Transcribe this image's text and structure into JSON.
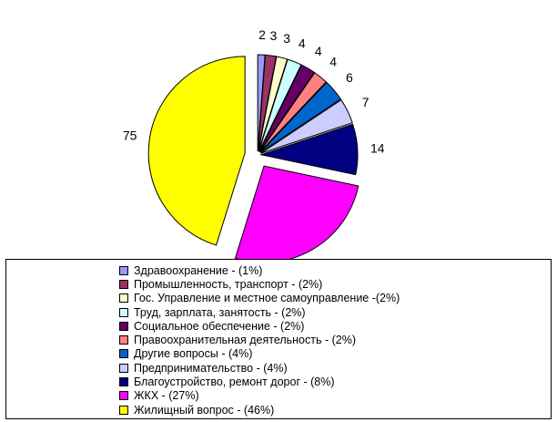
{
  "chart_data": {
    "type": "pie",
    "title": "",
    "slices": [
      {
        "label": "Здравоохранение - (1%)",
        "value": 2,
        "color": "#9999FF"
      },
      {
        "label": "Промышленность, транспорт - (2%)",
        "value": 3,
        "color": "#993366"
      },
      {
        "label": "Гос. Управление и местное самоуправление -(2%)",
        "value": 3,
        "color": "#FFFFCC"
      },
      {
        "label": "Труд, зарплата, занятость - (2%)",
        "value": 4,
        "color": "#CCFFFF"
      },
      {
        "label": "Социальное обеспечение - (2%)",
        "value": 4,
        "color": "#660066"
      },
      {
        "label": "Правоохранительная деятельность - (2%)",
        "value": 4,
        "color": "#FF8080"
      },
      {
        "label": "Другие вопросы - (4%)",
        "value": 6,
        "color": "#0066CC"
      },
      {
        "label": "Предпринимательство - (4%)",
        "value": 7,
        "color": "#CCCCFF"
      },
      {
        "label": "Благоустройство, ремонт дорог - (8%)",
        "value": 14,
        "color": "#000080"
      },
      {
        "label": "ЖКХ - (27%)",
        "value": 44,
        "color": "#FF00FF"
      },
      {
        "label": "Жилищный вопрос - (46%)",
        "value": 75,
        "color": "#FFFF00"
      }
    ],
    "legend_position": "bottom"
  }
}
